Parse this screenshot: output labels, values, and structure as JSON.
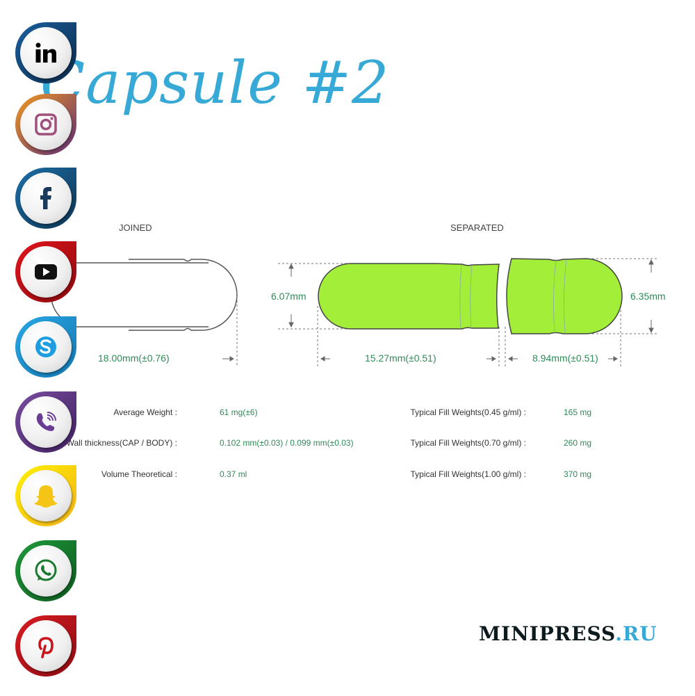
{
  "title": "Capsule #2",
  "diagram": {
    "joined_label": "JOINED",
    "separated_label": "SEPARATED",
    "joined_length": "18.00mm(±0.76)",
    "body_diameter": "6.07mm",
    "cap_diameter": "6.35mm",
    "body_length": "15.27mm(±0.51)",
    "cap_length": "8.94mm(±0.51)",
    "fill_color": "#a3ee38"
  },
  "specs_left": [
    {
      "label": "Average Weight :",
      "value": "61 mg(±6)"
    },
    {
      "label": "Wall thickness(CAP / BODY) :",
      "value": "0.102 mm(±0.03) / 0.099 mm(±0.03)"
    },
    {
      "label": "Volume Theoretical :",
      "value": "0.37 ml"
    }
  ],
  "specs_right": [
    {
      "label": "Typical Fill Weights(0.45 g/ml) :",
      "value": "165 mg"
    },
    {
      "label": "Typical Fill Weights(0.70 g/ml) :",
      "value": "260 mg"
    },
    {
      "label": "Typical Fill Weights(1.00 g/ml) :",
      "value": "370 mg"
    }
  ],
  "social": [
    {
      "name": "linkedin-icon",
      "color": "#1a5f9e",
      "color2": "#0d2b4a"
    },
    {
      "name": "instagram-icon",
      "color": "#f39a1f",
      "color2": "#5b2b7a"
    },
    {
      "name": "facebook-icon",
      "color": "#1d6fa8",
      "color2": "#0d3552"
    },
    {
      "name": "youtube-icon",
      "color": "#e3141c",
      "color2": "#8c0a0e"
    },
    {
      "name": "skype-icon",
      "color": "#29a9e6",
      "color2": "#1476b0"
    },
    {
      "name": "viber-icon",
      "color": "#7a4ea0",
      "color2": "#402060"
    },
    {
      "name": "snapchat-icon",
      "color": "#fff200",
      "color2": "#f2b21b"
    },
    {
      "name": "whatsapp-icon",
      "color": "#1f9a3a",
      "color2": "#0d5a20"
    },
    {
      "name": "pinterest-icon",
      "color": "#d91c22",
      "color2": "#8c0d12"
    }
  ],
  "logo": {
    "main": "MINIPRESS",
    "suffix": ".RU"
  }
}
